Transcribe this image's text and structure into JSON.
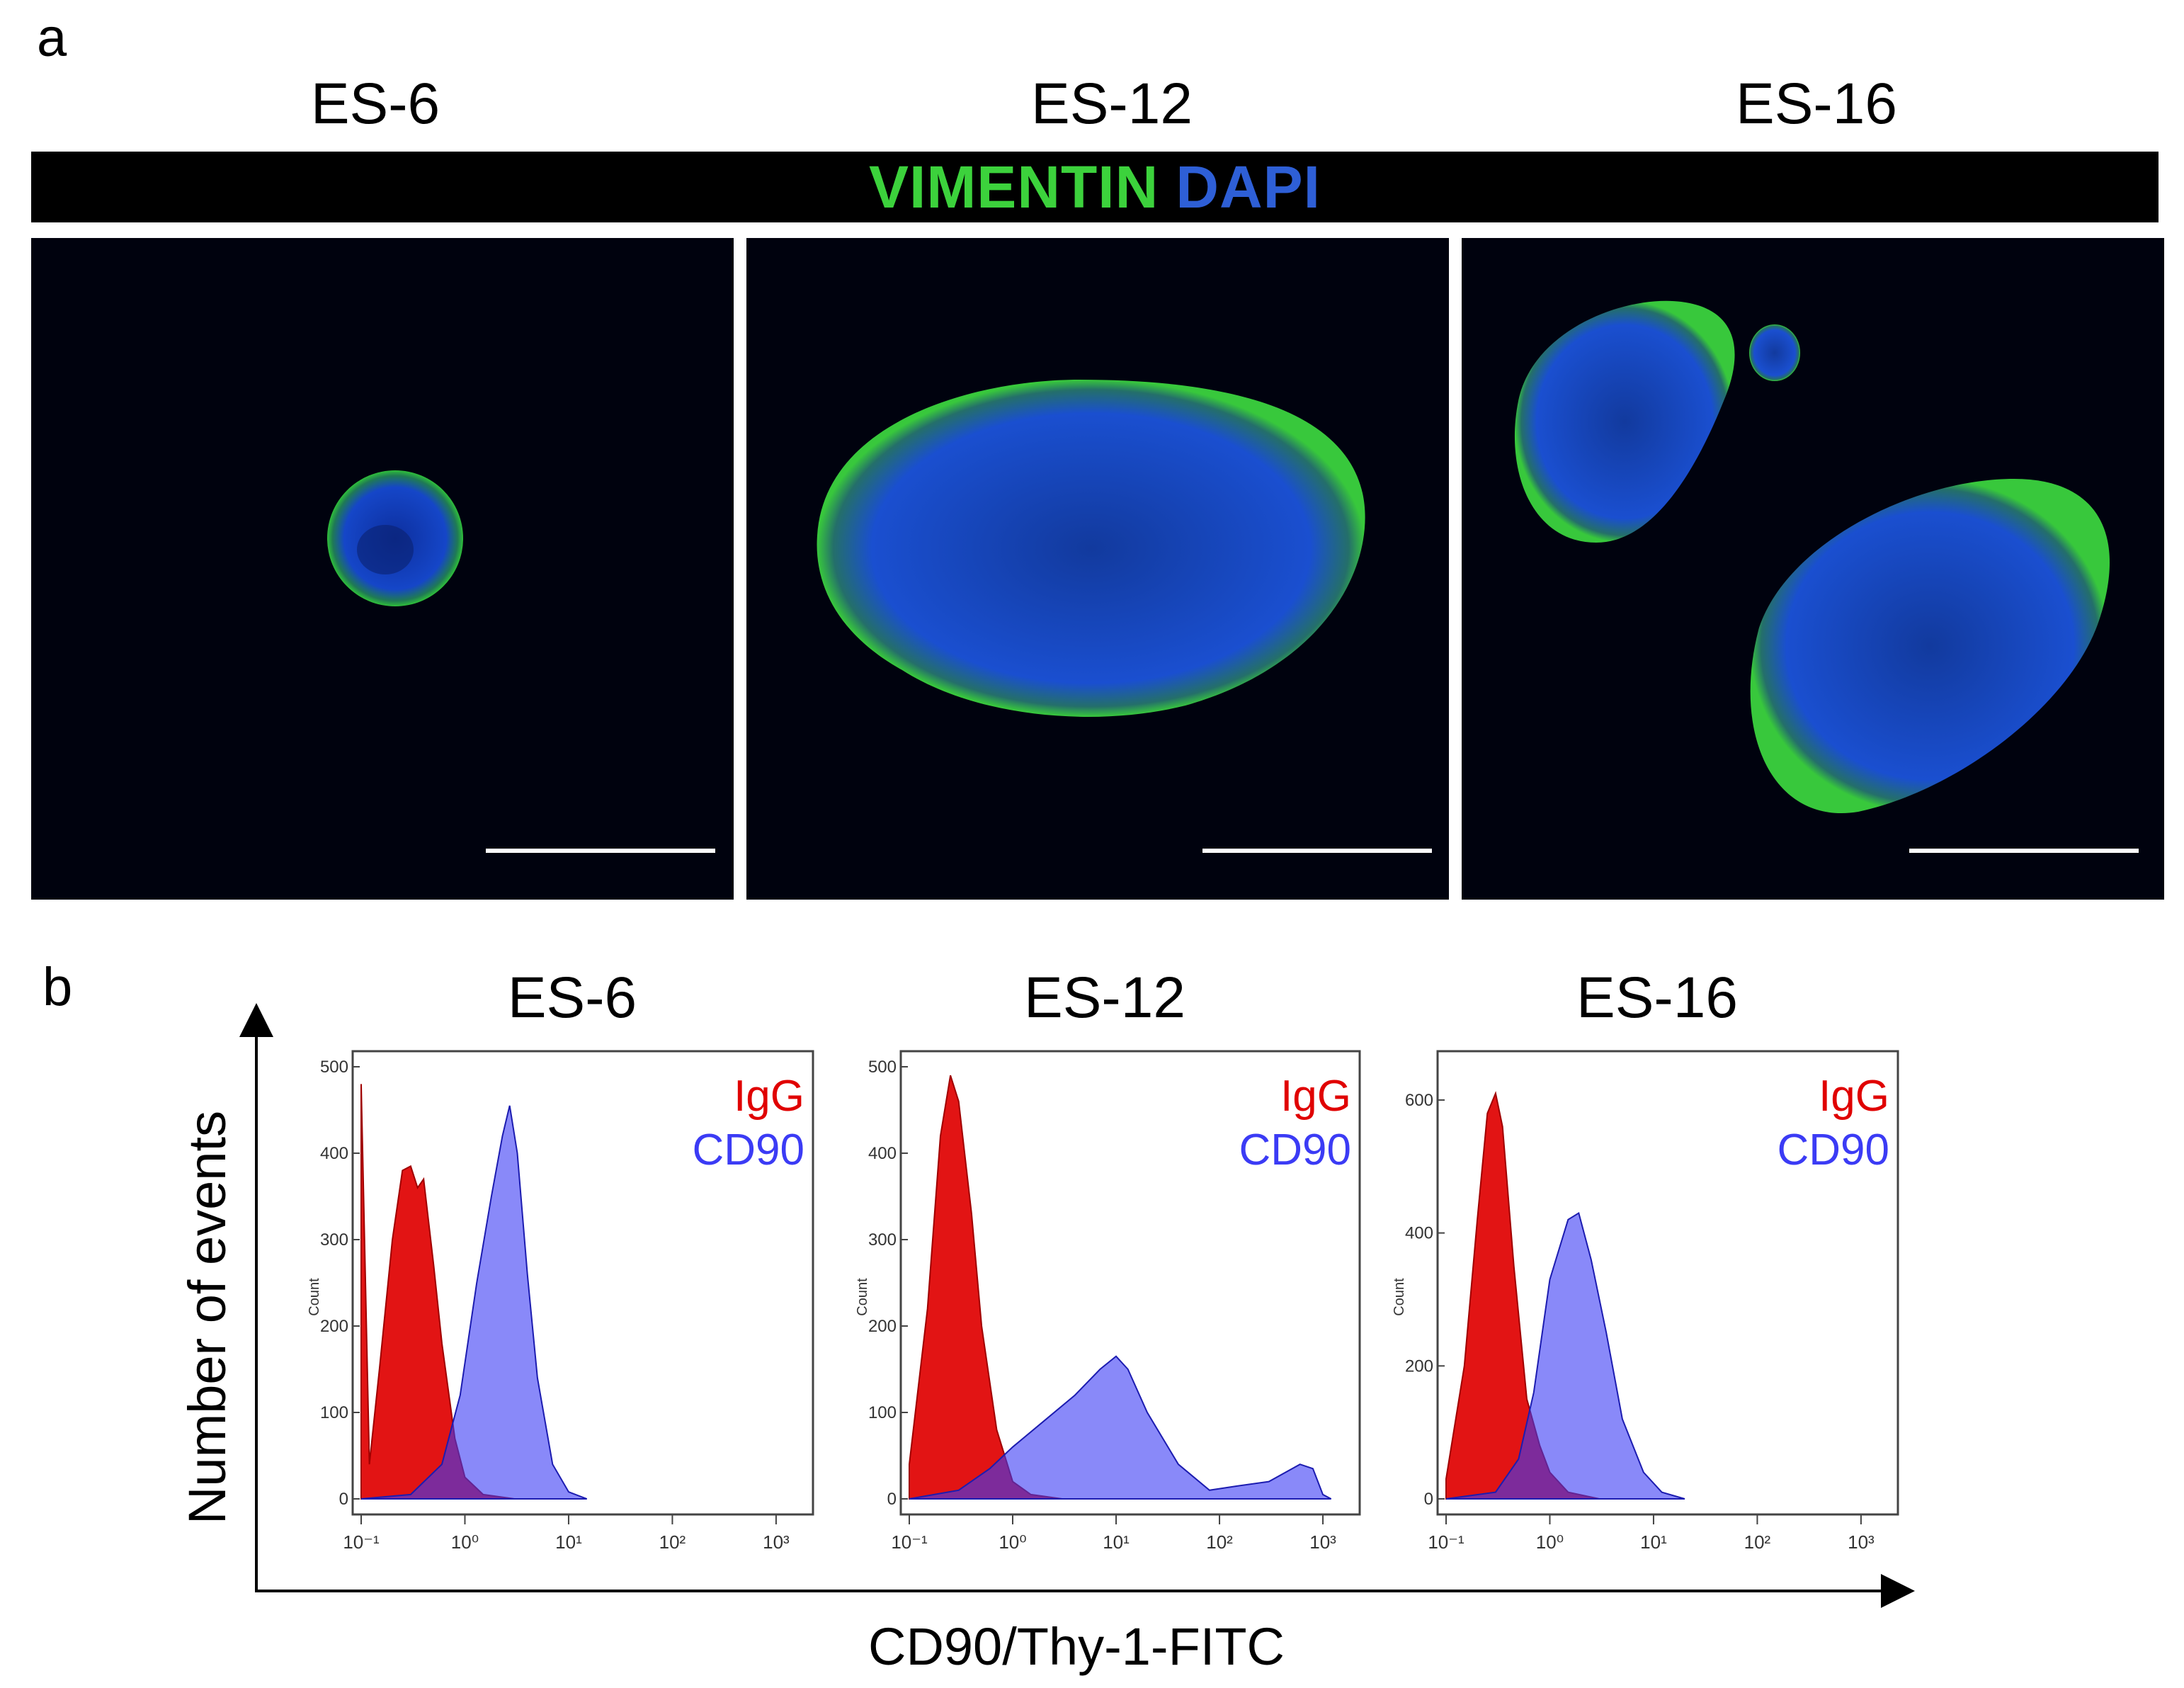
{
  "panel_a": {
    "letter": "a",
    "titles": [
      "ES-6",
      "ES-12",
      "ES-16"
    ],
    "stain_labels": {
      "vimentin": "VIMENTIN",
      "dapi": "DAPI"
    },
    "colors": {
      "vimentin": "#3cd23c",
      "dapi": "#2e5fd6",
      "background": "#000000"
    }
  },
  "panel_b": {
    "letter": "b",
    "titles": [
      "ES-6",
      "ES-12",
      "ES-16"
    ],
    "y_axis_title": "Number of events",
    "x_axis_title": "CD90/Thy-1-FITC",
    "legend": {
      "igg": "IgG",
      "cd90": "CD90"
    },
    "count_label": "Count",
    "colors": {
      "igg": "#e00000",
      "cd90": "#3b3bf5"
    }
  },
  "chart_data": [
    {
      "type": "area",
      "panel": "ES-6",
      "x_scale": "log",
      "xlim": [
        0.1,
        2000
      ],
      "ylim": [
        0,
        500
      ],
      "y_ticks": [
        0,
        100,
        200,
        300,
        400,
        500
      ],
      "x_ticks": [
        "10^-1",
        "10^0",
        "10^1",
        "10^2",
        "10^3"
      ],
      "series": [
        {
          "name": "IgG",
          "color": "#e00000",
          "points": [
            [
              0.1,
              480
            ],
            [
              0.12,
              40
            ],
            [
              0.15,
              150
            ],
            [
              0.2,
              300
            ],
            [
              0.25,
              380
            ],
            [
              0.3,
              385
            ],
            [
              0.35,
              360
            ],
            [
              0.4,
              370
            ],
            [
              0.5,
              270
            ],
            [
              0.6,
              180
            ],
            [
              0.8,
              70
            ],
            [
              1.0,
              25
            ],
            [
              1.5,
              5
            ],
            [
              3,
              0
            ]
          ]
        },
        {
          "name": "CD90",
          "color": "#3b3bf5",
          "points": [
            [
              0.1,
              0
            ],
            [
              0.3,
              5
            ],
            [
              0.6,
              40
            ],
            [
              0.9,
              120
            ],
            [
              1.3,
              250
            ],
            [
              1.8,
              350
            ],
            [
              2.3,
              420
            ],
            [
              2.7,
              455
            ],
            [
              3.2,
              400
            ],
            [
              4,
              260
            ],
            [
              5,
              140
            ],
            [
              7,
              40
            ],
            [
              10,
              8
            ],
            [
              15,
              0
            ]
          ]
        }
      ]
    },
    {
      "type": "area",
      "panel": "ES-12",
      "x_scale": "log",
      "xlim": [
        0.1,
        2000
      ],
      "ylim": [
        0,
        500
      ],
      "y_ticks": [
        0,
        100,
        200,
        300,
        400,
        500
      ],
      "x_ticks": [
        "10^-1",
        "10^0",
        "10^1",
        "10^2",
        "10^3"
      ],
      "series": [
        {
          "name": "IgG",
          "color": "#e00000",
          "points": [
            [
              0.1,
              40
            ],
            [
              0.15,
              220
            ],
            [
              0.2,
              420
            ],
            [
              0.25,
              490
            ],
            [
              0.3,
              460
            ],
            [
              0.4,
              330
            ],
            [
              0.5,
              200
            ],
            [
              0.7,
              80
            ],
            [
              1.0,
              20
            ],
            [
              1.5,
              5
            ],
            [
              3,
              0
            ]
          ]
        },
        {
          "name": "CD90",
          "color": "#3b3bf5",
          "points": [
            [
              0.1,
              0
            ],
            [
              0.3,
              10
            ],
            [
              0.6,
              35
            ],
            [
              1,
              60
            ],
            [
              2,
              90
            ],
            [
              4,
              120
            ],
            [
              7,
              150
            ],
            [
              10,
              165
            ],
            [
              13,
              150
            ],
            [
              20,
              100
            ],
            [
              40,
              40
            ],
            [
              80,
              10
            ],
            [
              150,
              15
            ],
            [
              300,
              20
            ],
            [
              600,
              40
            ],
            [
              800,
              35
            ],
            [
              1000,
              5
            ],
            [
              1200,
              0
            ]
          ]
        }
      ]
    },
    {
      "type": "area",
      "panel": "ES-16",
      "x_scale": "log",
      "xlim": [
        0.1,
        2000
      ],
      "ylim": [
        0,
        650
      ],
      "y_ticks": [
        0,
        200,
        400,
        600
      ],
      "x_ticks": [
        "10^-1",
        "10^0",
        "10^1",
        "10^2",
        "10^3"
      ],
      "series": [
        {
          "name": "IgG",
          "color": "#e00000",
          "points": [
            [
              0.1,
              30
            ],
            [
              0.15,
              200
            ],
            [
              0.2,
              420
            ],
            [
              0.25,
              580
            ],
            [
              0.3,
              610
            ],
            [
              0.35,
              560
            ],
            [
              0.45,
              350
            ],
            [
              0.6,
              150
            ],
            [
              0.8,
              80
            ],
            [
              1.0,
              40
            ],
            [
              1.5,
              10
            ],
            [
              3,
              0
            ]
          ]
        },
        {
          "name": "CD90",
          "color": "#3b3bf5",
          "points": [
            [
              0.1,
              0
            ],
            [
              0.3,
              10
            ],
            [
              0.5,
              60
            ],
            [
              0.7,
              160
            ],
            [
              1.0,
              330
            ],
            [
              1.5,
              420
            ],
            [
              1.9,
              430
            ],
            [
              2.5,
              360
            ],
            [
              3.5,
              250
            ],
            [
              5,
              120
            ],
            [
              8,
              40
            ],
            [
              12,
              10
            ],
            [
              20,
              0
            ]
          ]
        }
      ]
    }
  ]
}
